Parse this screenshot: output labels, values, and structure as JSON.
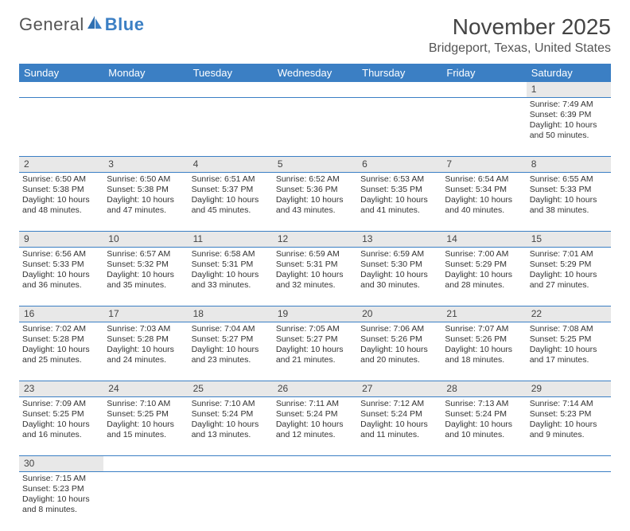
{
  "logo": {
    "text1": "General",
    "text2": "Blue"
  },
  "title": "November 2025",
  "location": "Bridgeport, Texas, United States",
  "header_bg": "#3b7fc4",
  "dayno_bg": "#e8e8e8",
  "days": [
    "Sunday",
    "Monday",
    "Tuesday",
    "Wednesday",
    "Thursday",
    "Friday",
    "Saturday"
  ],
  "weeks": [
    [
      null,
      null,
      null,
      null,
      null,
      null,
      {
        "n": "1",
        "sr": "7:49 AM",
        "ss": "6:39 PM",
        "dl": "10 hours and 50 minutes."
      }
    ],
    [
      {
        "n": "2",
        "sr": "6:50 AM",
        "ss": "5:38 PM",
        "dl": "10 hours and 48 minutes."
      },
      {
        "n": "3",
        "sr": "6:50 AM",
        "ss": "5:38 PM",
        "dl": "10 hours and 47 minutes."
      },
      {
        "n": "4",
        "sr": "6:51 AM",
        "ss": "5:37 PM",
        "dl": "10 hours and 45 minutes."
      },
      {
        "n": "5",
        "sr": "6:52 AM",
        "ss": "5:36 PM",
        "dl": "10 hours and 43 minutes."
      },
      {
        "n": "6",
        "sr": "6:53 AM",
        "ss": "5:35 PM",
        "dl": "10 hours and 41 minutes."
      },
      {
        "n": "7",
        "sr": "6:54 AM",
        "ss": "5:34 PM",
        "dl": "10 hours and 40 minutes."
      },
      {
        "n": "8",
        "sr": "6:55 AM",
        "ss": "5:33 PM",
        "dl": "10 hours and 38 minutes."
      }
    ],
    [
      {
        "n": "9",
        "sr": "6:56 AM",
        "ss": "5:33 PM",
        "dl": "10 hours and 36 minutes."
      },
      {
        "n": "10",
        "sr": "6:57 AM",
        "ss": "5:32 PM",
        "dl": "10 hours and 35 minutes."
      },
      {
        "n": "11",
        "sr": "6:58 AM",
        "ss": "5:31 PM",
        "dl": "10 hours and 33 minutes."
      },
      {
        "n": "12",
        "sr": "6:59 AM",
        "ss": "5:31 PM",
        "dl": "10 hours and 32 minutes."
      },
      {
        "n": "13",
        "sr": "6:59 AM",
        "ss": "5:30 PM",
        "dl": "10 hours and 30 minutes."
      },
      {
        "n": "14",
        "sr": "7:00 AM",
        "ss": "5:29 PM",
        "dl": "10 hours and 28 minutes."
      },
      {
        "n": "15",
        "sr": "7:01 AM",
        "ss": "5:29 PM",
        "dl": "10 hours and 27 minutes."
      }
    ],
    [
      {
        "n": "16",
        "sr": "7:02 AM",
        "ss": "5:28 PM",
        "dl": "10 hours and 25 minutes."
      },
      {
        "n": "17",
        "sr": "7:03 AM",
        "ss": "5:28 PM",
        "dl": "10 hours and 24 minutes."
      },
      {
        "n": "18",
        "sr": "7:04 AM",
        "ss": "5:27 PM",
        "dl": "10 hours and 23 minutes."
      },
      {
        "n": "19",
        "sr": "7:05 AM",
        "ss": "5:27 PM",
        "dl": "10 hours and 21 minutes."
      },
      {
        "n": "20",
        "sr": "7:06 AM",
        "ss": "5:26 PM",
        "dl": "10 hours and 20 minutes."
      },
      {
        "n": "21",
        "sr": "7:07 AM",
        "ss": "5:26 PM",
        "dl": "10 hours and 18 minutes."
      },
      {
        "n": "22",
        "sr": "7:08 AM",
        "ss": "5:25 PM",
        "dl": "10 hours and 17 minutes."
      }
    ],
    [
      {
        "n": "23",
        "sr": "7:09 AM",
        "ss": "5:25 PM",
        "dl": "10 hours and 16 minutes."
      },
      {
        "n": "24",
        "sr": "7:10 AM",
        "ss": "5:25 PM",
        "dl": "10 hours and 15 minutes."
      },
      {
        "n": "25",
        "sr": "7:10 AM",
        "ss": "5:24 PM",
        "dl": "10 hours and 13 minutes."
      },
      {
        "n": "26",
        "sr": "7:11 AM",
        "ss": "5:24 PM",
        "dl": "10 hours and 12 minutes."
      },
      {
        "n": "27",
        "sr": "7:12 AM",
        "ss": "5:24 PM",
        "dl": "10 hours and 11 minutes."
      },
      {
        "n": "28",
        "sr": "7:13 AM",
        "ss": "5:24 PM",
        "dl": "10 hours and 10 minutes."
      },
      {
        "n": "29",
        "sr": "7:14 AM",
        "ss": "5:23 PM",
        "dl": "10 hours and 9 minutes."
      }
    ],
    [
      {
        "n": "30",
        "sr": "7:15 AM",
        "ss": "5:23 PM",
        "dl": "10 hours and 8 minutes."
      },
      null,
      null,
      null,
      null,
      null,
      null
    ]
  ],
  "labels": {
    "sunrise": "Sunrise: ",
    "sunset": "Sunset: ",
    "daylight": "Daylight: "
  }
}
